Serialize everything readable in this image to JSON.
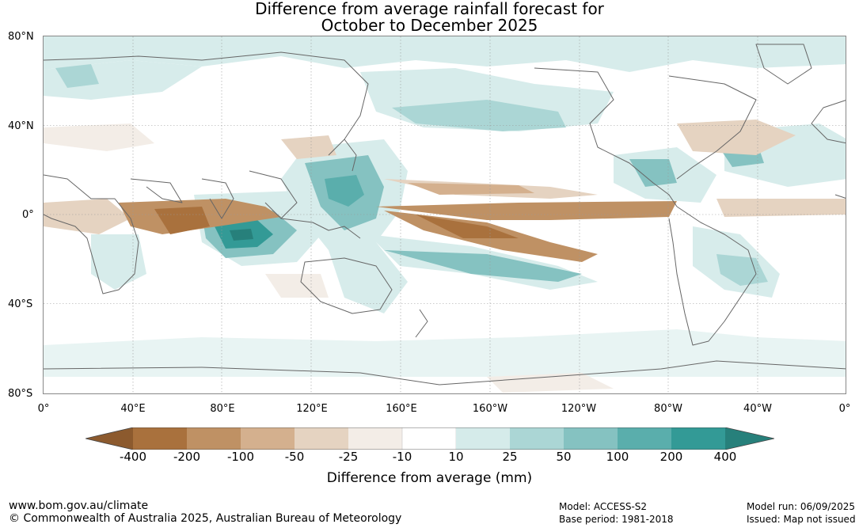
{
  "title": {
    "line1": "Difference from average rainfall forecast for",
    "line2": "October to December 2025"
  },
  "map": {
    "lat_labels": [
      "80°N",
      "40°N",
      "0°",
      "40°S",
      "80°S"
    ],
    "lon_labels": [
      "0°",
      "40°E",
      "80°E",
      "120°E",
      "160°E",
      "160°W",
      "120°W",
      "80°W",
      "40°W",
      "0°"
    ]
  },
  "legend": {
    "title": "Difference from average (mm)",
    "ticks": [
      "-400",
      "-200",
      "-100",
      "-50",
      "-25",
      "-10",
      "10",
      "25",
      "50",
      "100",
      "200",
      "400"
    ],
    "colors": [
      "#8c5a2e",
      "#a9713d",
      "#bf9164",
      "#d4b08e",
      "#e5d3c1",
      "#f3ede7",
      "#ffffff",
      "#d5ebea",
      "#abd6d5",
      "#85c2c1",
      "#5aaeac",
      "#339a96",
      "#27807b"
    ]
  },
  "footer": {
    "url": "www.bom.gov.au/climate",
    "copyright": "© Commonwealth of Australia 2025, Australian Bureau of Meteorology",
    "model": "Model: ACCESS-S2",
    "base_period": "Base period: 1981-2018",
    "model_run": "Model run: 06/09/2025",
    "issued": "Issued: Map not issued"
  }
}
